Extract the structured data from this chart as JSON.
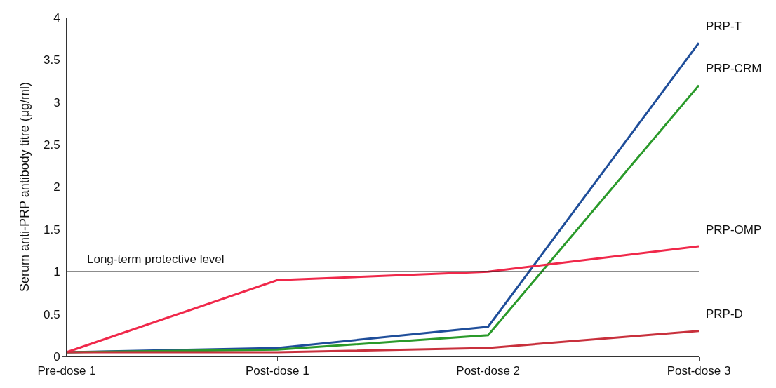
{
  "chart_data": {
    "type": "line",
    "ylabel": "Serum anti-PRP antibody titre (μg/ml)",
    "categories": [
      "Pre-dose 1",
      "Post-dose 1",
      "Post-dose 2",
      "Post-dose 3"
    ],
    "series": [
      {
        "name": "PRP-T",
        "color": "#1f4e9a",
        "values": [
          0.05,
          0.1,
          0.35,
          3.7
        ]
      },
      {
        "name": "PRP-CRM",
        "color": "#2a9a2a",
        "values": [
          0.05,
          0.08,
          0.25,
          3.2
        ]
      },
      {
        "name": "PRP-OMP",
        "color": "#f0284a",
        "values": [
          0.05,
          0.9,
          1.0,
          1.3
        ]
      },
      {
        "name": "PRP-D",
        "color": "#c8303c",
        "values": [
          0.05,
          0.05,
          0.1,
          0.3
        ]
      }
    ],
    "ylim": [
      0,
      4
    ],
    "yticks": [
      0,
      0.5,
      1,
      1.5,
      2,
      2.5,
      3,
      3.5,
      4
    ],
    "ref_lines": [
      {
        "axis": "y",
        "value": 1,
        "label": "Long-term protective level",
        "color": "#1a1a1a"
      }
    ],
    "legend": false,
    "marker": "none",
    "line_style": "solid"
  }
}
